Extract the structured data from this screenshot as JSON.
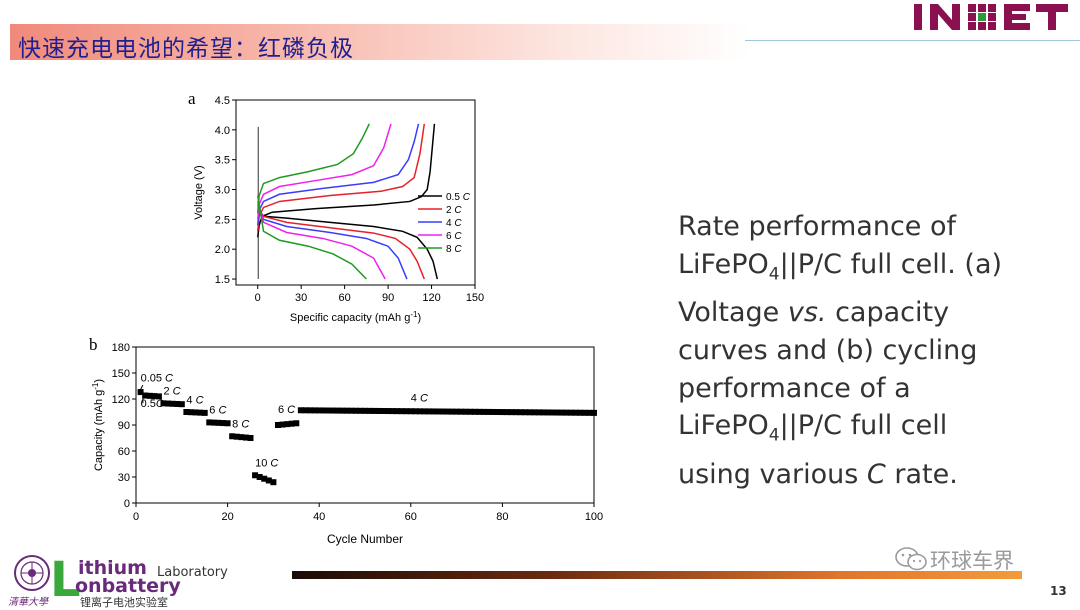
{
  "header": {
    "title": "快速充电电池的希望：红磷负极",
    "logo_text": "INET"
  },
  "description": {
    "l1": "Rate performance of",
    "l2a": "LiFePO",
    "l2sub": "4",
    "l2b": "||P/C full cell. (a)",
    "l3a": "Voltage ",
    "l3it": "vs.",
    "l3b": " capacity",
    "l4": "curves and (b) cycling",
    "l5": "performance of a",
    "l6a": "LiFePO",
    "l6sub": "4",
    "l6b": "||P/C full cell",
    "l7a": "using various ",
    "l7it": "C",
    "l7b": " rate."
  },
  "footer": {
    "watermark": "环球车界",
    "page_number": "13",
    "lab_big_L": "L",
    "lab_word1": "ithium",
    "lab_word2": "Laboratory",
    "lab_word3": "onbattery",
    "lab_cn": "锂离子电池实验室",
    "univ": "清華大學"
  },
  "chart_data": [
    {
      "panel": "a",
      "type": "line",
      "xlabel": "Specific capacity (mAh g",
      "xlabel_sup": "-1",
      "xlabel_end": ")",
      "ylabel": "Voltage (V)",
      "xlim": [
        -15,
        150
      ],
      "ylim": [
        1.4,
        4.5
      ],
      "xticks": [
        0,
        30,
        60,
        90,
        120,
        150
      ],
      "yticks": [
        1.5,
        2.0,
        2.5,
        3.0,
        3.5,
        4.0,
        4.5
      ],
      "xtick_labels": [
        "0",
        "30",
        "60",
        "90",
        "120",
        "150"
      ],
      "ytick_labels": [
        "1.5",
        "2.0",
        "2.5",
        "3.0",
        "3.5",
        "4.0",
        "4.5"
      ],
      "series": [
        {
          "name": "0.5",
          "rate_unit": "C",
          "color": "#000000",
          "charge": [
            [
              0,
              2.2
            ],
            [
              1,
              2.4
            ],
            [
              3,
              2.55
            ],
            [
              10,
              2.62
            ],
            [
              40,
              2.68
            ],
            [
              80,
              2.74
            ],
            [
              105,
              2.8
            ],
            [
              113,
              2.88
            ],
            [
              117,
              3.0
            ],
            [
              119,
              3.3
            ],
            [
              122,
              4.1
            ]
          ],
          "discharge": [
            [
              0,
              2.6
            ],
            [
              5,
              2.55
            ],
            [
              20,
              2.52
            ],
            [
              50,
              2.45
            ],
            [
              80,
              2.38
            ],
            [
              100,
              2.3
            ],
            [
              110,
              2.2
            ],
            [
              117,
              2.0
            ],
            [
              121,
              1.8
            ],
            [
              124,
              1.5
            ]
          ]
        },
        {
          "name": "2",
          "rate_unit": "C",
          "color": "#e8202a",
          "charge": [
            [
              0,
              2.3
            ],
            [
              1,
              2.55
            ],
            [
              4,
              2.7
            ],
            [
              15,
              2.8
            ],
            [
              50,
              2.9
            ],
            [
              85,
              2.97
            ],
            [
              100,
              3.05
            ],
            [
              108,
              3.2
            ],
            [
              112,
              3.6
            ],
            [
              115,
              4.1
            ]
          ],
          "discharge": [
            [
              0,
              2.7
            ],
            [
              4,
              2.55
            ],
            [
              20,
              2.45
            ],
            [
              50,
              2.36
            ],
            [
              80,
              2.27
            ],
            [
              95,
              2.18
            ],
            [
              105,
              2.0
            ],
            [
              110,
              1.8
            ],
            [
              115,
              1.5
            ]
          ]
        },
        {
          "name": "4",
          "rate_unit": "C",
          "color": "#3b3bff",
          "charge": [
            [
              0,
              2.4
            ],
            [
              1,
              2.65
            ],
            [
              4,
              2.8
            ],
            [
              15,
              2.92
            ],
            [
              45,
              3.02
            ],
            [
              80,
              3.12
            ],
            [
              97,
              3.25
            ],
            [
              104,
              3.5
            ],
            [
              108,
              3.8
            ],
            [
              111,
              4.1
            ]
          ],
          "discharge": [
            [
              0,
              2.75
            ],
            [
              4,
              2.5
            ],
            [
              20,
              2.38
            ],
            [
              50,
              2.28
            ],
            [
              75,
              2.18
            ],
            [
              90,
              2.05
            ],
            [
              97,
              1.85
            ],
            [
              103,
              1.5
            ]
          ]
        },
        {
          "name": "6",
          "rate_unit": "C",
          "color": "#f020f0",
          "charge": [
            [
              0,
              2.5
            ],
            [
              1,
              2.75
            ],
            [
              4,
              2.92
            ],
            [
              15,
              3.05
            ],
            [
              40,
              3.15
            ],
            [
              65,
              3.25
            ],
            [
              80,
              3.4
            ],
            [
              87,
              3.7
            ],
            [
              92,
              4.1
            ]
          ],
          "discharge": [
            [
              0,
              2.8
            ],
            [
              4,
              2.45
            ],
            [
              20,
              2.28
            ],
            [
              45,
              2.18
            ],
            [
              65,
              2.05
            ],
            [
              80,
              1.85
            ],
            [
              88,
              1.5
            ]
          ]
        },
        {
          "name": "8",
          "rate_unit": "C",
          "color": "#1f9a1f",
          "charge": [
            [
              0,
              2.6
            ],
            [
              1,
              2.9
            ],
            [
              4,
              3.1
            ],
            [
              15,
              3.2
            ],
            [
              35,
              3.3
            ],
            [
              55,
              3.42
            ],
            [
              66,
              3.6
            ],
            [
              72,
              3.85
            ],
            [
              77,
              4.1
            ]
          ],
          "discharge": [
            [
              0,
              2.9
            ],
            [
              4,
              2.3
            ],
            [
              15,
              2.15
            ],
            [
              35,
              2.05
            ],
            [
              52,
              1.92
            ],
            [
              65,
              1.75
            ],
            [
              75,
              1.5
            ]
          ]
        }
      ],
      "initial_drop": [
        [
          0,
          4.05
        ],
        [
          0,
          1.5
        ]
      ]
    },
    {
      "panel": "b",
      "type": "scatter",
      "xlabel": "Cycle Number",
      "ylabel": "Capacity (mAh g",
      "ylabel_sup": "-1",
      "ylabel_end": ")",
      "xlim": [
        0,
        100
      ],
      "ylim": [
        0,
        180
      ],
      "xticks": [
        0,
        20,
        40,
        60,
        80,
        100
      ],
      "yticks": [
        0,
        30,
        60,
        90,
        120,
        150,
        180
      ],
      "xtick_labels": [
        "0",
        "20",
        "40",
        "60",
        "80",
        "100"
      ],
      "ytick_labels": [
        "0",
        "30",
        "60",
        "90",
        "120",
        "150",
        "180"
      ],
      "segments": [
        {
          "from": 1,
          "to": 1,
          "start": 128,
          "end": 128
        },
        {
          "from": 2,
          "to": 5,
          "start": 124,
          "end": 123
        },
        {
          "from": 6,
          "to": 10,
          "start": 115,
          "end": 114
        },
        {
          "from": 11,
          "to": 15,
          "start": 105,
          "end": 104
        },
        {
          "from": 16,
          "to": 20,
          "start": 93,
          "end": 92
        },
        {
          "from": 21,
          "to": 25,
          "start": 77,
          "end": 75
        },
        {
          "from": 26,
          "to": 30,
          "start": 32,
          "end": 24
        },
        {
          "from": 31,
          "to": 35,
          "start": 90,
          "end": 92
        },
        {
          "from": 36,
          "to": 100,
          "start": 107,
          "end": 104
        }
      ],
      "annotations": [
        {
          "text": "0.05 ",
          "it": "C",
          "x": 1,
          "y": 140
        },
        {
          "text": "0.5",
          "it": "C",
          "x": 1,
          "y": 111
        },
        {
          "text": "2 ",
          "it": "C",
          "x": 6,
          "y": 125
        },
        {
          "text": "4 ",
          "it": "C",
          "x": 11,
          "y": 115
        },
        {
          "text": "6 ",
          "it": "C",
          "x": 16,
          "y": 103
        },
        {
          "text": "8 ",
          "it": "C",
          "x": 21,
          "y": 87
        },
        {
          "text": "10 ",
          "it": "C",
          "x": 26,
          "y": 42
        },
        {
          "text": "6 ",
          "it": "C",
          "x": 31,
          "y": 104
        },
        {
          "text": "4 ",
          "it": "C",
          "x": 60,
          "y": 117
        }
      ]
    }
  ]
}
